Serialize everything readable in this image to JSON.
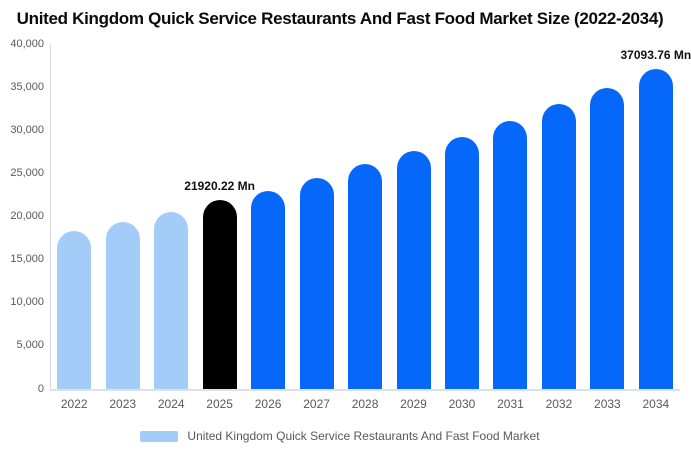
{
  "chart_data": {
    "type": "bar",
    "title": "United Kingdom Quick Service Restaurants And Fast Food Market Size (2022-2034)",
    "series_name": "United Kingdom Quick Service Restaurants And Fast Food Market",
    "unit": "Mn",
    "categories": [
      "2022",
      "2023",
      "2024",
      "2025",
      "2026",
      "2027",
      "2028",
      "2029",
      "2030",
      "2031",
      "2032",
      "2033",
      "2034"
    ],
    "values": [
      18300,
      19400,
      20550,
      21920.22,
      23000,
      24450,
      26120,
      27550,
      29200,
      31100,
      33000,
      34900,
      37093.76
    ],
    "bar_roles": [
      "historical",
      "historical",
      "historical",
      "current",
      "forecast",
      "forecast",
      "forecast",
      "forecast",
      "forecast",
      "forecast",
      "forecast",
      "forecast",
      "forecast"
    ],
    "annotations": [
      {
        "category": "2025",
        "text": "21920.22 Mn"
      },
      {
        "category": "2034",
        "text": "37093.76 Mn"
      }
    ],
    "ylim": [
      0,
      40000
    ],
    "y_ticks": [
      0,
      5000,
      10000,
      15000,
      20000,
      25000,
      30000,
      35000,
      40000
    ],
    "y_tick_labels": [
      "0",
      "5,000",
      "10,000",
      "15,000",
      "20,000",
      "25,000",
      "30,000",
      "35,000",
      "40,000"
    ],
    "xlabel": "",
    "ylabel": "",
    "grid": false,
    "legend_position": "bottom"
  },
  "colors": {
    "historical": "#a4ccf9",
    "current": "#000000",
    "forecast": "#0668fb",
    "axis_line": "#d9d9d9",
    "baseline": "#dde2ea",
    "axis_text": "#595959",
    "annotation_text": "#111111"
  }
}
